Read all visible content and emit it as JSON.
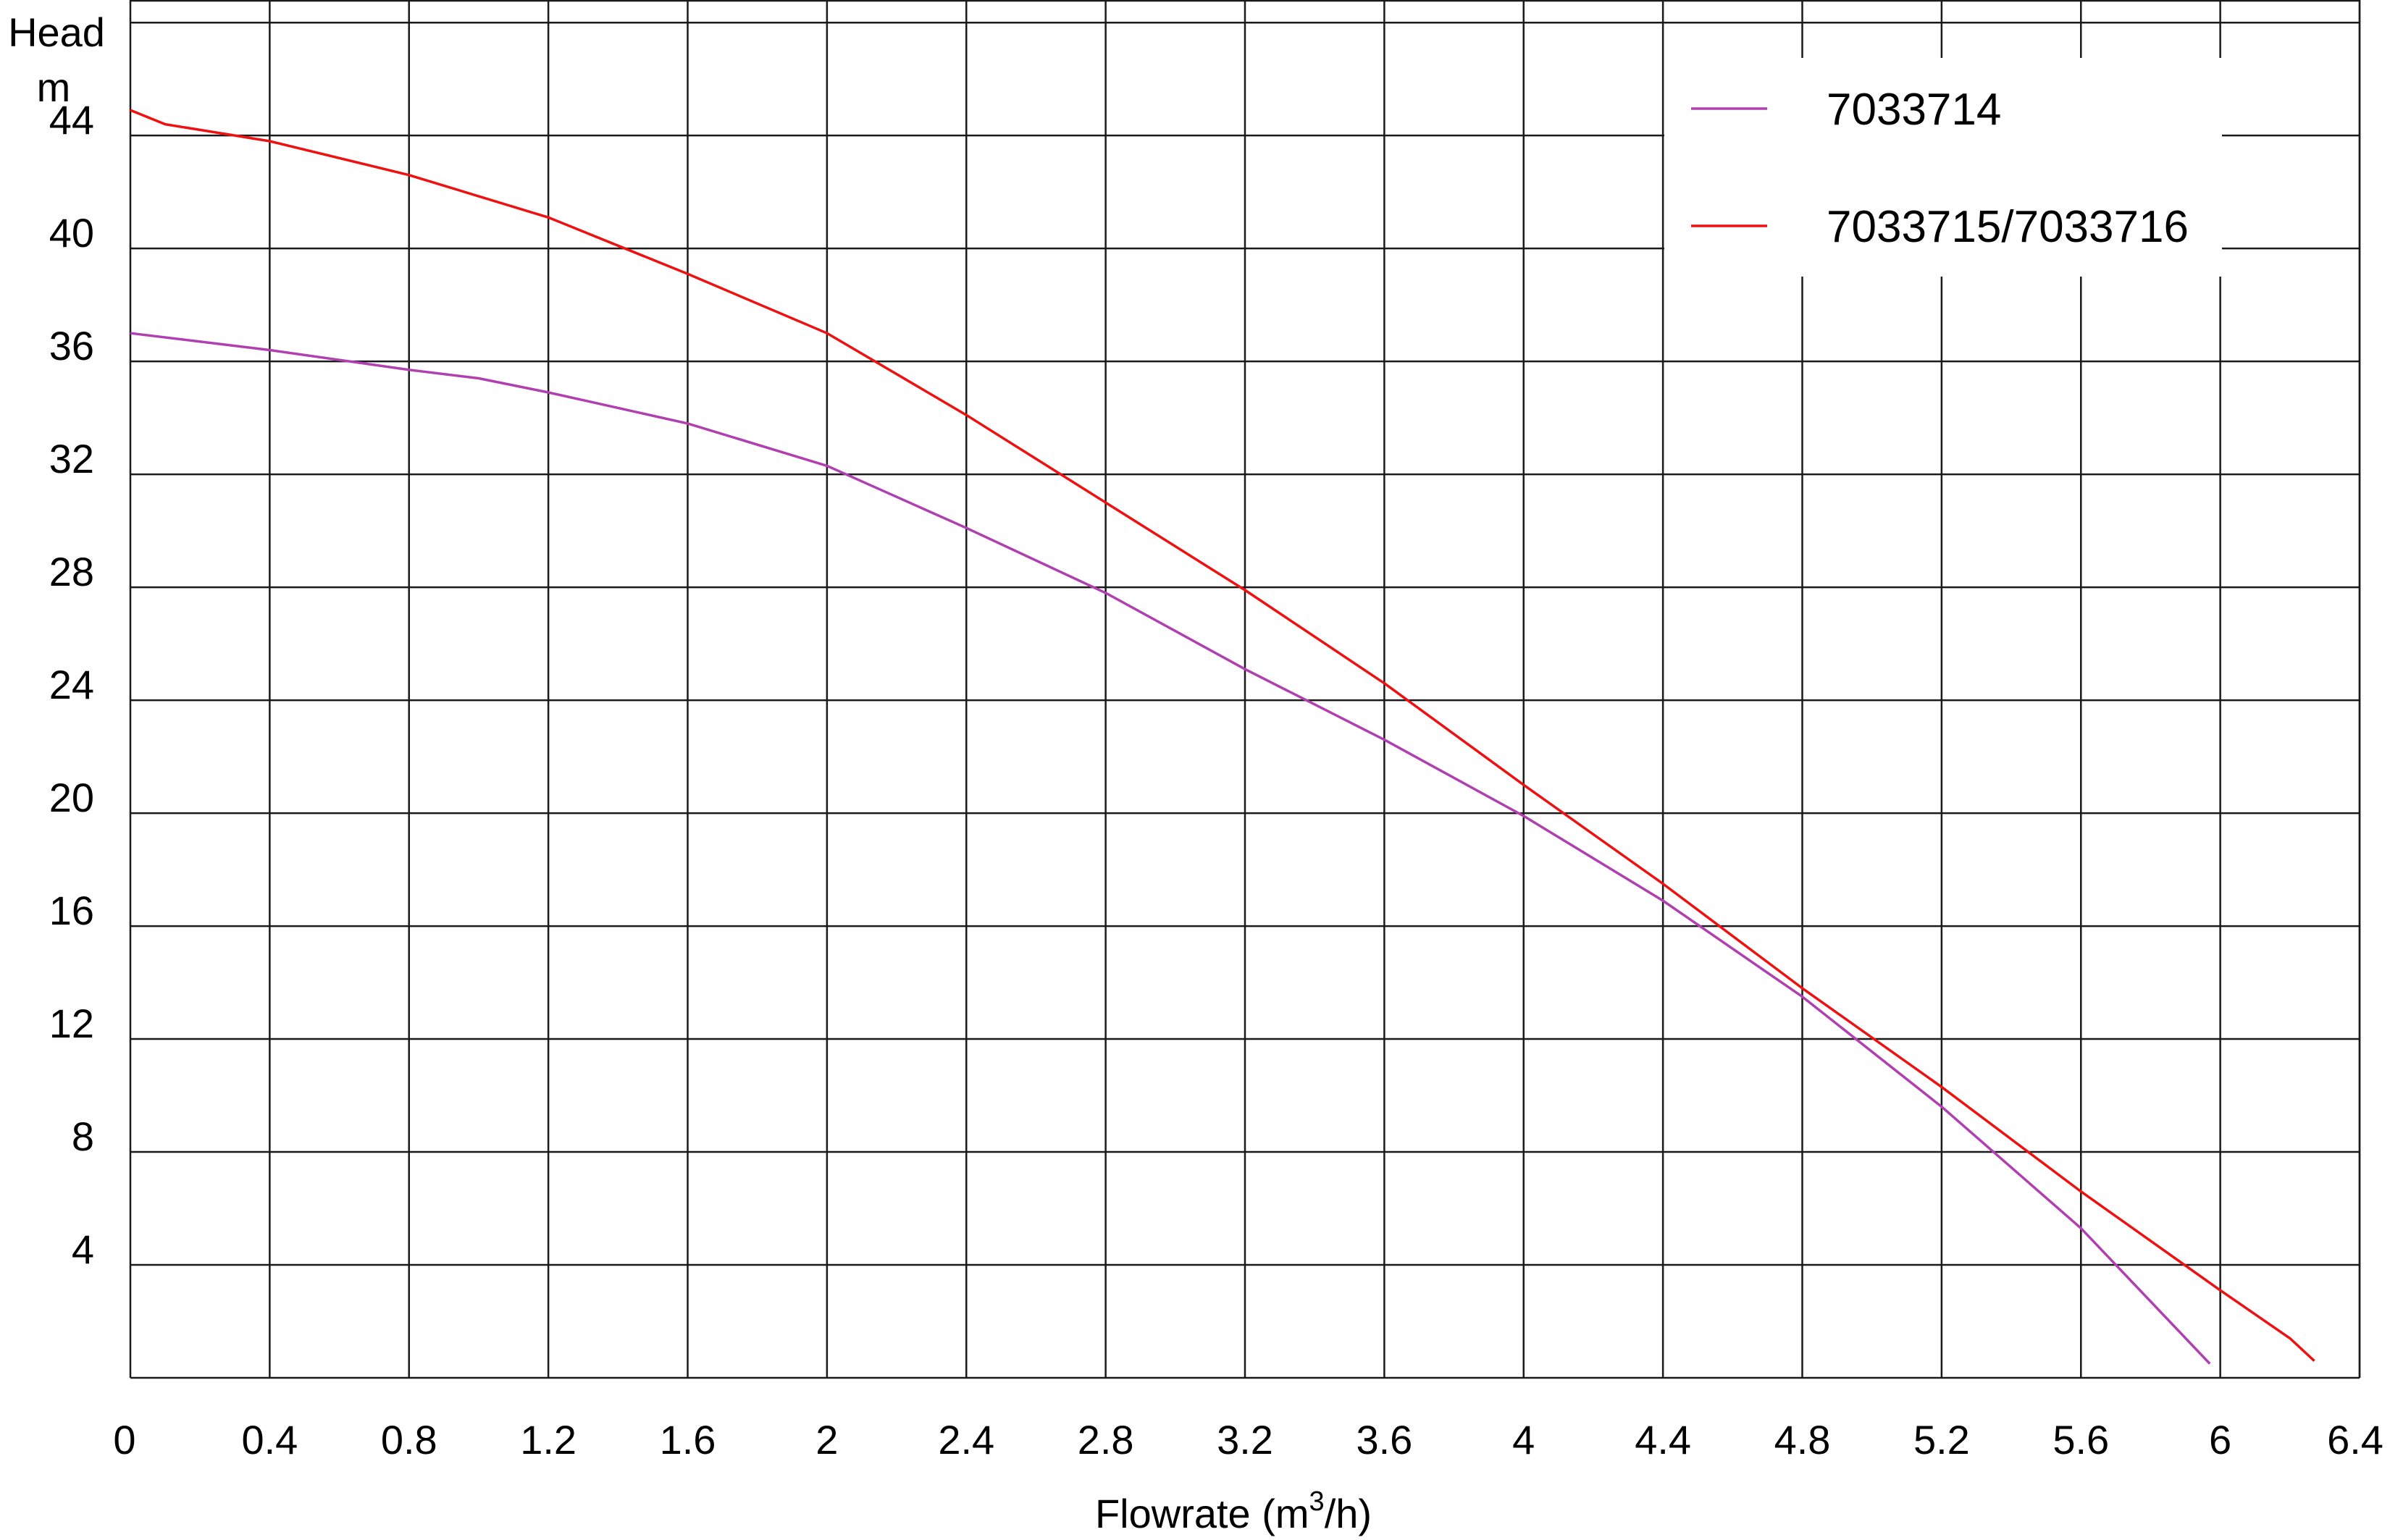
{
  "chart_data": {
    "type": "line",
    "ylabel_line1": "Head",
    "ylabel_line2": "m",
    "xlabel_prefix": "Flowrate (m",
    "xlabel_sup": "3",
    "xlabel_suffix": "/h)",
    "xlim": [
      0,
      6.4
    ],
    "ylim": [
      0,
      48.8
    ],
    "grid": true,
    "legend_position": "top-right",
    "x_ticks": [
      "0",
      "0.4",
      "0.8",
      "1.2",
      "1.6",
      "2",
      "2.4",
      "2.8",
      "3.2",
      "3.6",
      "4",
      "4.4",
      "4.8",
      "5.2",
      "5.6",
      "6",
      "6.4"
    ],
    "y_ticks": [
      "4",
      "8",
      "12",
      "16",
      "20",
      "24",
      "28",
      "32",
      "36",
      "40",
      "44"
    ],
    "series": [
      {
        "name": "7033714",
        "color": "#b040b0",
        "x": [
          0,
          0.4,
          0.8,
          1.0,
          1.2,
          1.6,
          2.0,
          2.4,
          2.8,
          3.2,
          3.6,
          4.0,
          4.4,
          4.8,
          5.2,
          5.6,
          5.97
        ],
        "y": [
          37.0,
          36.4,
          35.7,
          35.4,
          34.9,
          33.8,
          32.3,
          30.1,
          27.8,
          25.1,
          22.6,
          19.9,
          16.9,
          13.5,
          9.6,
          5.3,
          0.5
        ]
      },
      {
        "name": "7033715/7033716",
        "color": "#ee1111",
        "x": [
          0,
          0.1,
          0.2,
          0.4,
          0.8,
          1.2,
          1.6,
          2.0,
          2.4,
          2.8,
          3.2,
          3.6,
          4.0,
          4.4,
          4.8,
          5.2,
          5.6,
          6.0,
          6.2,
          6.27
        ],
        "y": [
          44.9,
          44.4,
          44.2,
          43.8,
          42.6,
          41.1,
          39.1,
          37.0,
          34.1,
          31.0,
          27.9,
          24.6,
          21.0,
          17.5,
          13.8,
          10.3,
          6.6,
          3.1,
          1.4,
          0.6
        ]
      }
    ]
  }
}
